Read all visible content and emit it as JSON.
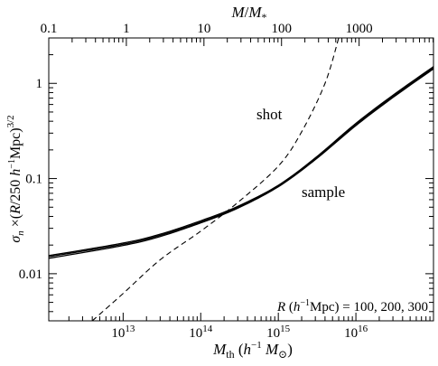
{
  "chart_data": {
    "type": "line",
    "title": "",
    "xlabel": "M_th (h^-1 M_⊙)",
    "ylabel": "σ_n ×(R/250 h^-1Mpc)^3/2",
    "top_xlabel": "M/M_*",
    "xscale": "log",
    "yscale": "log",
    "xlim": [
      1100000000000.0,
      1e+17
    ],
    "ylim": [
      0.0032,
      3.0
    ],
    "top_axis": {
      "ticks": [
        0.1,
        1,
        10,
        100,
        1000
      ],
      "tick_labels": [
        "0.1",
        "1",
        "10",
        "100",
        "1000"
      ],
      "mstar": 11000000000000.0
    },
    "x_ticks": [
      {
        "value": 10000000000000.0,
        "label": "10",
        "exp": "13"
      },
      {
        "value": 100000000000000.0,
        "label": "10",
        "exp": "14"
      },
      {
        "value": 1000000000000000.0,
        "label": "10",
        "exp": "15"
      },
      {
        "value": 1e+16,
        "label": "10",
        "exp": "16"
      }
    ],
    "y_ticks": [
      {
        "value": 0.01,
        "label": "0.01"
      },
      {
        "value": 0.1,
        "label": "0.1"
      },
      {
        "value": 1,
        "label": "1"
      }
    ],
    "grid": false,
    "series": [
      {
        "name": "sample",
        "style": "solid",
        "points": [
          [
            1100000000000.0,
            0.0155
          ],
          [
            10000000000000.0,
            0.021
          ],
          [
            30000000000000.0,
            0.026
          ],
          [
            100000000000000.0,
            0.036
          ],
          [
            300000000000000.0,
            0.051
          ],
          [
            1000000000000000.0,
            0.085
          ],
          [
            3000000000000000.0,
            0.165
          ],
          [
            1e+16,
            0.38
          ],
          [
            3e+16,
            0.75
          ],
          [
            1e+17,
            1.5
          ]
        ]
      },
      {
        "style": "solid",
        "points": [
          [
            1100000000000.0,
            0.0145
          ],
          [
            10000000000000.0,
            0.0198
          ],
          [
            30000000000000.0,
            0.0246
          ],
          [
            100000000000000.0,
            0.0342
          ],
          [
            300000000000000.0,
            0.0488
          ],
          [
            1000000000000000.0,
            0.082
          ],
          [
            3000000000000000.0,
            0.158
          ],
          [
            1e+16,
            0.36
          ],
          [
            3e+16,
            0.71
          ],
          [
            1e+17,
            1.42
          ]
        ]
      },
      {
        "style": "solid",
        "points": [
          [
            1100000000000.0,
            0.0151
          ],
          [
            10000000000000.0,
            0.0204
          ],
          [
            30000000000000.0,
            0.0253
          ],
          [
            100000000000000.0,
            0.035
          ],
          [
            300000000000000.0,
            0.0498
          ],
          [
            1000000000000000.0,
            0.0835
          ],
          [
            3000000000000000.0,
            0.161
          ],
          [
            1e+16,
            0.37
          ],
          [
            3e+16,
            0.73
          ],
          [
            1e+17,
            1.46
          ]
        ]
      },
      {
        "name": "shot",
        "style": "dashed",
        "points": [
          [
            4000000000000.0,
            0.0032
          ],
          [
            10000000000000.0,
            0.0062
          ],
          [
            30000000000000.0,
            0.014
          ],
          [
            100000000000000.0,
            0.028
          ],
          [
            300000000000000.0,
            0.056
          ],
          [
            1000000000000000.0,
            0.135
          ],
          [
            2000000000000000.0,
            0.31
          ],
          [
            4000000000000000.0,
            1.0
          ],
          [
            6000000000000000.0,
            3.0
          ]
        ]
      }
    ],
    "annotations": {
      "shot": "shot",
      "sample": "sample",
      "radius_note": "R (h^-1Mpc) = 100, 200, 300"
    }
  }
}
